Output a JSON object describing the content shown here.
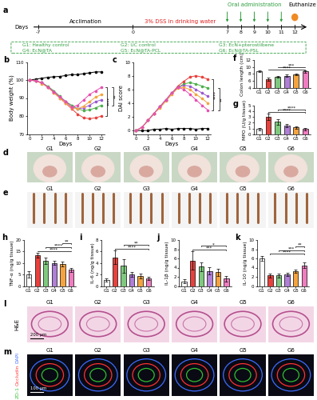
{
  "schematic": {
    "panel": "a",
    "axis_label": "Days",
    "days": [
      -7,
      0,
      7,
      8,
      9,
      10,
      11,
      12
    ],
    "phases": [
      {
        "text": "Acclimation",
        "from": -7,
        "to": 0,
        "color": "#000000"
      },
      {
        "text": "3% DSS in drinking water",
        "from": 0,
        "to": 7,
        "color": "#e02020"
      }
    ],
    "dosing": {
      "text": "Oral administration",
      "days": [
        7,
        8,
        9,
        10,
        11
      ],
      "color": "#2e9e3e"
    },
    "endpoint": {
      "text": "Euthanize",
      "day": 12,
      "color": "#f08a24"
    },
    "groups": [
      "G1: Healthy control",
      "G2: UC control",
      "G3: EcN+pterostilbene",
      "G4: EcN@TA",
      "G5: EcN@TA-PCL",
      "G6: EcN@TA-PSL"
    ],
    "groups_color": "#2e9e3e"
  },
  "chart_data": [
    {
      "panel": "b",
      "type": "line",
      "x_label": "Days",
      "y_label": "Body weight (%)",
      "x": [
        0,
        1,
        2,
        3,
        4,
        5,
        6,
        7,
        8,
        9,
        10,
        11,
        12
      ],
      "xlim": [
        -0.5,
        12.5
      ],
      "xticks": [
        0,
        2,
        4,
        6,
        8,
        10,
        12
      ],
      "ylim": [
        70,
        110
      ],
      "yticks": [
        70,
        80,
        90,
        100,
        110
      ],
      "marker": "o",
      "series": [
        {
          "color": "#000000",
          "values": [
            100,
            100.5,
            101,
            101.5,
            101.8,
            102,
            102.5,
            103,
            103,
            103.5,
            104,
            104.5,
            104.5
          ]
        },
        {
          "color": "#e8413c",
          "values": [
            100,
            99.5,
            98.5,
            96,
            93,
            90,
            87,
            84,
            81,
            79,
            78.5,
            79,
            80
          ]
        },
        {
          "color": "#4daf4a",
          "values": [
            100,
            99.5,
            98.5,
            96.5,
            94,
            91,
            88,
            86,
            84,
            83,
            83.5,
            84.5,
            86
          ]
        },
        {
          "color": "#9b59d0",
          "values": [
            100,
            99.5,
            98.5,
            96,
            93.5,
            90.5,
            88,
            85,
            84,
            84.5,
            86,
            88,
            89
          ]
        },
        {
          "color": "#f4a340",
          "values": [
            100,
            99.5,
            98,
            96,
            93,
            90,
            87,
            84.5,
            84,
            85.5,
            88,
            90.5,
            92
          ]
        },
        {
          "color": "#e84fb0",
          "values": [
            100,
            99.5,
            98.5,
            96,
            93.5,
            90.5,
            88,
            85,
            86,
            89,
            92,
            94,
            96
          ]
        }
      ],
      "significance": [
        {
          "text": "****",
          "between": [
            1,
            5
          ]
        },
        {
          "text": "**",
          "between": [
            2,
            5
          ]
        }
      ]
    },
    {
      "panel": "c",
      "type": "line",
      "x_label": "Days",
      "y_label": "DAI score",
      "x": [
        0,
        1,
        2,
        3,
        4,
        5,
        6,
        7,
        8,
        9,
        10,
        11,
        12
      ],
      "xlim": [
        -0.5,
        12.5
      ],
      "xticks": [
        0,
        2,
        4,
        6,
        8,
        10,
        12
      ],
      "ylim": [
        -0.5,
        10
      ],
      "yticks": [
        0,
        2,
        4,
        6,
        8,
        10
      ],
      "marker": "o",
      "series": [
        {
          "color": "#000000",
          "values": [
            0,
            0,
            0,
            0.2,
            0.2,
            0.3,
            0.2,
            0.3,
            0.3,
            0.3,
            0.2,
            0.3,
            0.3
          ]
        },
        {
          "color": "#e8413c",
          "values": [
            0,
            0.5,
            1.5,
            2.5,
            3.5,
            4.5,
            5.5,
            6.5,
            7.2,
            7.8,
            8.0,
            7.8,
            7.5
          ]
        },
        {
          "color": "#4daf4a",
          "values": [
            0,
            0.5,
            1.5,
            2.5,
            3.5,
            4.5,
            5.5,
            6.3,
            6.8,
            7.0,
            6.8,
            6.5,
            6.2
          ]
        },
        {
          "color": "#9b59d0",
          "values": [
            0,
            0.5,
            1.5,
            2.5,
            3.5,
            4.5,
            5.5,
            6.3,
            6.6,
            6.5,
            6.0,
            5.5,
            5.0
          ]
        },
        {
          "color": "#f4a340",
          "values": [
            0,
            0.5,
            1.5,
            2.5,
            3.3,
            4.3,
            5.3,
            6.2,
            6.3,
            6.0,
            5.3,
            4.7,
            4.0
          ]
        },
        {
          "color": "#e84fb0",
          "values": [
            0,
            0.5,
            1.5,
            2.5,
            3.5,
            4.5,
            5.5,
            6.3,
            6.0,
            5.3,
            4.5,
            3.7,
            3.0
          ]
        }
      ],
      "significance": [
        {
          "text": "****",
          "between": [
            1,
            5
          ]
        },
        {
          "text": "**",
          "between": [
            2,
            5
          ]
        }
      ]
    },
    {
      "panel": "f",
      "type": "bar",
      "y_label": "Colon length (cm)",
      "categories": [
        "G1",
        "G2",
        "G3",
        "G4",
        "G5",
        "G6"
      ],
      "values": [
        8.8,
        6.5,
        7.2,
        7.5,
        7.9,
        8.7
      ],
      "errors": [
        0.2,
        0.5,
        0.3,
        0.3,
        0.3,
        0.3
      ],
      "colors": [
        "#ffffff",
        "#e8413c",
        "#7fc97f",
        "#b07fd6",
        "#f4a340",
        "#f07cc0"
      ],
      "ylim": [
        4,
        12
      ],
      "yticks": [
        4,
        6,
        8,
        10,
        12
      ],
      "significance": [
        {
          "text": "****",
          "between": [
            "G2",
            "G6"
          ]
        },
        {
          "text": "***",
          "between": [
            "G3",
            "G6"
          ]
        }
      ]
    },
    {
      "panel": "g",
      "type": "bar",
      "y_label": "MPO (U/g tissue)",
      "categories": [
        "G1",
        "G2",
        "G3",
        "G4",
        "G5",
        "G6"
      ],
      "values": [
        0.9,
        3.1,
        2.2,
        1.5,
        1.2,
        0.9
      ],
      "errors": [
        0.2,
        0.6,
        0.5,
        0.3,
        0.2,
        0.2
      ],
      "colors": [
        "#ffffff",
        "#e8413c",
        "#7fc97f",
        "#b07fd6",
        "#f4a340",
        "#f07cc0"
      ],
      "ylim": [
        0,
        5
      ],
      "yticks": [
        0,
        1,
        2,
        3,
        4,
        5
      ],
      "significance": [
        {
          "text": "****",
          "between": [
            "G2",
            "G6"
          ]
        },
        {
          "text": "****",
          "between": [
            "G3",
            "G6"
          ]
        }
      ]
    },
    {
      "panel": "h",
      "type": "bar",
      "y_label": "TNF-α (ng/g tissue)",
      "categories": [
        "G1",
        "G2",
        "G3",
        "G4",
        "G5",
        "G6"
      ],
      "values": [
        5,
        13.5,
        11,
        10,
        9.5,
        7
      ],
      "errors": [
        1.5,
        1.0,
        1.5,
        0.8,
        1.0,
        1.0
      ],
      "colors": [
        "#ffffff",
        "#e8413c",
        "#7fc97f",
        "#b07fd6",
        "#f4a340",
        "#f07cc0"
      ],
      "ylim": [
        0,
        20
      ],
      "yticks": [
        0,
        5,
        10,
        15,
        20
      ],
      "significance": [
        {
          "text": "****",
          "between": [
            "G2",
            "G6"
          ]
        },
        {
          "text": "****",
          "between": [
            "G3",
            "G6"
          ]
        },
        {
          "text": "**",
          "between": [
            "G5",
            "G6"
          ]
        }
      ]
    },
    {
      "panel": "i",
      "type": "bar",
      "y_label": "IL-6 (ng/g tissue)",
      "categories": [
        "G1",
        "G2",
        "G3",
        "G4",
        "G5",
        "G6"
      ],
      "values": [
        1.0,
        5.0,
        3.5,
        2.0,
        1.7,
        1.3
      ],
      "errors": [
        0.3,
        1.2,
        1.2,
        0.4,
        0.4,
        0.3
      ],
      "colors": [
        "#ffffff",
        "#e8413c",
        "#7fc97f",
        "#b07fd6",
        "#f4a340",
        "#f07cc0"
      ],
      "ylim": [
        0,
        8
      ],
      "yticks": [
        0,
        2,
        4,
        6,
        8
      ],
      "significance": [
        {
          "text": "****",
          "between": [
            "G2",
            "G6"
          ]
        },
        {
          "text": "**",
          "between": [
            "G3",
            "G6"
          ]
        }
      ]
    },
    {
      "panel": "j",
      "type": "bar",
      "y_label": "IL-1β (ng/g tissue)",
      "categories": [
        "G1",
        "G2",
        "G3",
        "G4",
        "G5",
        "G6"
      ],
      "values": [
        1.0,
        5.5,
        4.2,
        3.3,
        3.0,
        1.6
      ],
      "errors": [
        0.4,
        2.0,
        1.0,
        0.8,
        0.8,
        0.6
      ],
      "colors": [
        "#ffffff",
        "#e8413c",
        "#7fc97f",
        "#b07fd6",
        "#f4a340",
        "#f07cc0"
      ],
      "ylim": [
        0,
        10
      ],
      "yticks": [
        0,
        2,
        4,
        6,
        8,
        10
      ],
      "significance": [
        {
          "text": "***",
          "between": [
            "G2",
            "G6"
          ]
        },
        {
          "text": "*",
          "between": [
            "G3",
            "G6"
          ]
        }
      ]
    },
    {
      "panel": "k",
      "type": "bar",
      "y_label": "IL-10 (ng/g tissue)",
      "categories": [
        "G1",
        "G2",
        "G3",
        "G4",
        "G5",
        "G6"
      ],
      "values": [
        6.0,
        2.3,
        2.3,
        2.5,
        3.2,
        4.5
      ],
      "errors": [
        0.6,
        0.4,
        0.4,
        0.4,
        0.4,
        0.6
      ],
      "colors": [
        "#ffffff",
        "#e8413c",
        "#7fc97f",
        "#b07fd6",
        "#f4a340",
        "#f07cc0"
      ],
      "ylim": [
        0,
        10
      ],
      "yticks": [
        0,
        2,
        4,
        6,
        8,
        10
      ],
      "significance": [
        {
          "text": "****",
          "between": [
            "G2",
            "G6"
          ]
        },
        {
          "text": "***",
          "between": [
            "G3",
            "G6"
          ]
        },
        {
          "text": "**",
          "between": [
            "G5",
            "G6"
          ]
        }
      ]
    }
  ],
  "photos": [
    {
      "panel": "d",
      "labels": [
        "G1",
        "G2",
        "G3",
        "G4",
        "G5",
        "G6"
      ]
    },
    {
      "panel": "e",
      "labels": [
        "G1",
        "G2",
        "G3",
        "G4",
        "G5",
        "G6"
      ]
    }
  ],
  "micrographs": [
    {
      "panel": "l",
      "stains": [
        "H&E"
      ],
      "stain_colors": [
        "#000000"
      ],
      "labels": [
        "G1",
        "G2",
        "G3",
        "G4",
        "G5",
        "G6"
      ],
      "scale_bar": "200 μm"
    },
    {
      "panel": "m",
      "stains": [
        "DAPI",
        "Occludin",
        "ZO-1"
      ],
      "stain_colors": [
        "#3b6cff",
        "#ff3030",
        "#30c030"
      ],
      "labels": [
        "G1",
        "G2",
        "G3",
        "G4",
        "G5",
        "G6"
      ],
      "scale_bar": "100 μm"
    }
  ]
}
